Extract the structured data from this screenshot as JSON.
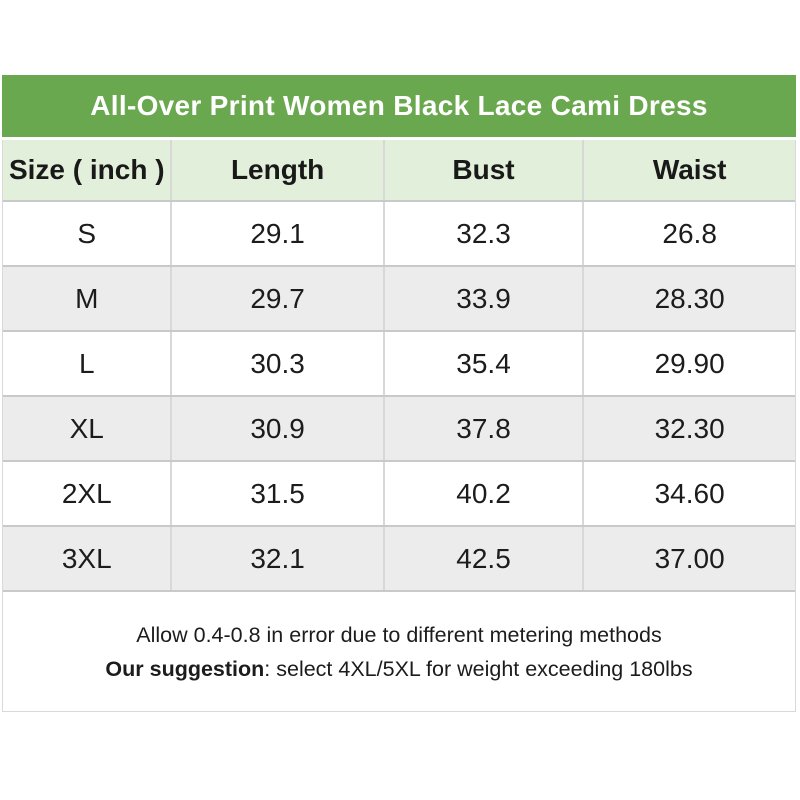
{
  "title": "All-Over Print Women Black Lace Cami Dress",
  "table": {
    "columns": [
      "Size ( inch )",
      "Length",
      "Bust",
      "Waist"
    ],
    "rows": [
      {
        "size": "S",
        "length": "29.1",
        "bust": "32.3",
        "waist": "26.8"
      },
      {
        "size": "M",
        "length": "29.7",
        "bust": "33.9",
        "waist": "28.30"
      },
      {
        "size": "L",
        "length": "30.3",
        "bust": "35.4",
        "waist": "29.90"
      },
      {
        "size": "XL",
        "length": "30.9",
        "bust": "37.8",
        "waist": "32.30"
      },
      {
        "size": "2XL",
        "length": "31.5",
        "bust": "40.2",
        "waist": "34.60"
      },
      {
        "size": "3XL",
        "length": "32.1",
        "bust": "42.5",
        "waist": "37.00"
      }
    ]
  },
  "notes": {
    "line1": "Allow 0.4-0.8 in error due to different metering methods",
    "suggestion_label": "Our suggestion",
    "suggestion_text": ": select 4XL/5XL for weight exceeding 180lbs"
  },
  "colors": {
    "title_bar_green": "#6aa84f",
    "header_row_green": "#e2efda",
    "alt_row_gray": "#ececec",
    "row_border_gray": "#c9c9c9",
    "text": "#1c1c1c",
    "title_text": "#ffffff"
  }
}
